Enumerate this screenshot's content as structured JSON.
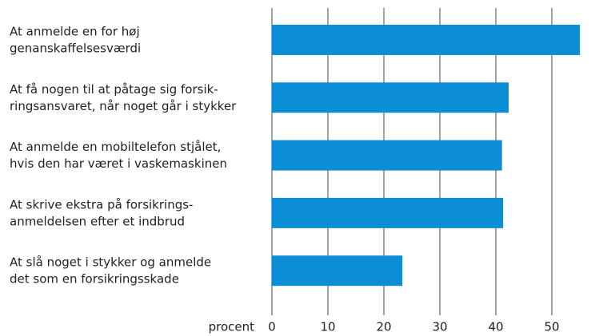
{
  "chart_data": {
    "type": "bar",
    "orientation": "horizontal",
    "categories": [
      "At anmelde en for høj\ngenanskaffelsesværdi",
      "At få nogen til at påtage sig forsik-\nringsansvaret, når noget går i stykker",
      "At anmelde en mobiltelefon stjålet,\nhvis den har været i vaskemaskinen",
      "At skrive ekstra på forsikrings-\nanmeldelsen efter et indbrud",
      "At slå noget i stykker og anmelde\ndet som en forsikringsskade"
    ],
    "values": [
      55,
      42.3,
      41.1,
      41.3,
      23.3
    ],
    "color": "#0b8ed6",
    "xlabel": "procent",
    "xlim": [
      0,
      55
    ],
    "xticks": [
      0,
      10,
      20,
      30,
      40,
      50
    ],
    "grid": true
  }
}
